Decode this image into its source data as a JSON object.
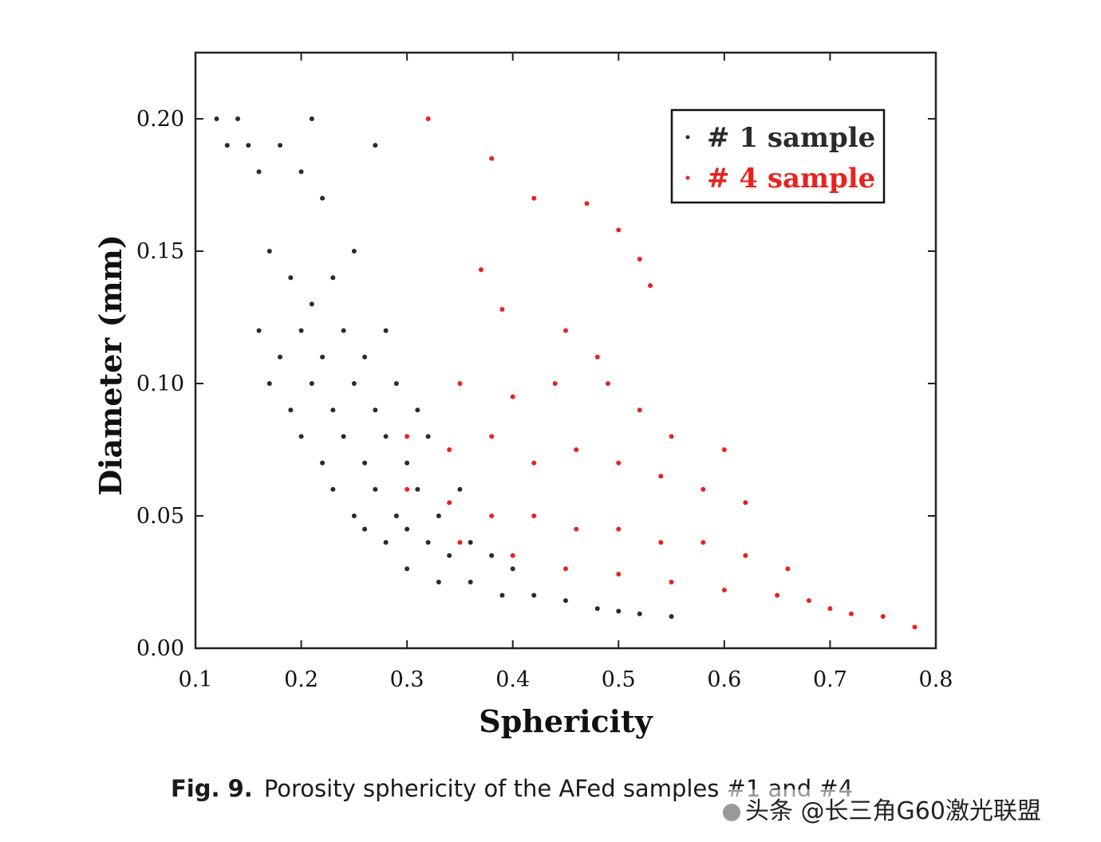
{
  "chart_data": {
    "type": "scatter",
    "xlabel": "Sphericity",
    "ylabel": "Diameter (mm)",
    "xlim": [
      0.1,
      0.8
    ],
    "ylim": [
      0.0,
      0.225
    ],
    "xticks": [
      "0.1",
      "0.2",
      "0.3",
      "0.4",
      "0.5",
      "0.6",
      "0.7",
      "0.8"
    ],
    "yticks": [
      "0.00",
      "0.05",
      "0.10",
      "0.15",
      "0.20"
    ],
    "legend_position": "top-right",
    "series": [
      {
        "name": "# 1 sample",
        "color": "#2b2b2b",
        "points": [
          [
            0.12,
            0.2
          ],
          [
            0.13,
            0.19
          ],
          [
            0.14,
            0.2
          ],
          [
            0.15,
            0.19
          ],
          [
            0.16,
            0.18
          ],
          [
            0.18,
            0.19
          ],
          [
            0.2,
            0.18
          ],
          [
            0.21,
            0.2
          ],
          [
            0.22,
            0.17
          ],
          [
            0.27,
            0.19
          ],
          [
            0.17,
            0.15
          ],
          [
            0.19,
            0.14
          ],
          [
            0.21,
            0.13
          ],
          [
            0.23,
            0.14
          ],
          [
            0.25,
            0.15
          ],
          [
            0.16,
            0.12
          ],
          [
            0.18,
            0.11
          ],
          [
            0.2,
            0.12
          ],
          [
            0.22,
            0.11
          ],
          [
            0.24,
            0.12
          ],
          [
            0.26,
            0.11
          ],
          [
            0.28,
            0.12
          ],
          [
            0.17,
            0.1
          ],
          [
            0.19,
            0.09
          ],
          [
            0.21,
            0.1
          ],
          [
            0.23,
            0.09
          ],
          [
            0.25,
            0.1
          ],
          [
            0.27,
            0.09
          ],
          [
            0.29,
            0.1
          ],
          [
            0.31,
            0.09
          ],
          [
            0.2,
            0.08
          ],
          [
            0.22,
            0.07
          ],
          [
            0.24,
            0.08
          ],
          [
            0.26,
            0.07
          ],
          [
            0.28,
            0.08
          ],
          [
            0.3,
            0.07
          ],
          [
            0.32,
            0.08
          ],
          [
            0.23,
            0.06
          ],
          [
            0.25,
            0.05
          ],
          [
            0.27,
            0.06
          ],
          [
            0.29,
            0.05
          ],
          [
            0.31,
            0.06
          ],
          [
            0.33,
            0.05
          ],
          [
            0.35,
            0.06
          ],
          [
            0.26,
            0.045
          ],
          [
            0.28,
            0.04
          ],
          [
            0.3,
            0.045
          ],
          [
            0.32,
            0.04
          ],
          [
            0.34,
            0.035
          ],
          [
            0.36,
            0.04
          ],
          [
            0.38,
            0.035
          ],
          [
            0.4,
            0.03
          ],
          [
            0.3,
            0.03
          ],
          [
            0.33,
            0.025
          ],
          [
            0.36,
            0.025
          ],
          [
            0.39,
            0.02
          ],
          [
            0.42,
            0.02
          ],
          [
            0.45,
            0.018
          ],
          [
            0.48,
            0.015
          ],
          [
            0.5,
            0.014
          ],
          [
            0.52,
            0.013
          ],
          [
            0.55,
            0.012
          ]
        ]
      },
      {
        "name": "# 4 sample",
        "color": "#e8231f",
        "points": [
          [
            0.32,
            0.2
          ],
          [
            0.38,
            0.185
          ],
          [
            0.42,
            0.17
          ],
          [
            0.47,
            0.168
          ],
          [
            0.5,
            0.158
          ],
          [
            0.52,
            0.147
          ],
          [
            0.53,
            0.137
          ],
          [
            0.37,
            0.143
          ],
          [
            0.39,
            0.128
          ],
          [
            0.45,
            0.12
          ],
          [
            0.48,
            0.11
          ],
          [
            0.35,
            0.1
          ],
          [
            0.4,
            0.095
          ],
          [
            0.44,
            0.1
          ],
          [
            0.49,
            0.1
          ],
          [
            0.52,
            0.09
          ],
          [
            0.55,
            0.08
          ],
          [
            0.6,
            0.075
          ],
          [
            0.3,
            0.08
          ],
          [
            0.34,
            0.075
          ],
          [
            0.38,
            0.08
          ],
          [
            0.42,
            0.07
          ],
          [
            0.46,
            0.075
          ],
          [
            0.5,
            0.07
          ],
          [
            0.54,
            0.065
          ],
          [
            0.58,
            0.06
          ],
          [
            0.62,
            0.055
          ],
          [
            0.3,
            0.06
          ],
          [
            0.34,
            0.055
          ],
          [
            0.38,
            0.05
          ],
          [
            0.42,
            0.05
          ],
          [
            0.46,
            0.045
          ],
          [
            0.5,
            0.045
          ],
          [
            0.54,
            0.04
          ],
          [
            0.58,
            0.04
          ],
          [
            0.62,
            0.035
          ],
          [
            0.66,
            0.03
          ],
          [
            0.35,
            0.04
          ],
          [
            0.4,
            0.035
          ],
          [
            0.45,
            0.03
          ],
          [
            0.5,
            0.028
          ],
          [
            0.55,
            0.025
          ],
          [
            0.6,
            0.022
          ],
          [
            0.65,
            0.02
          ],
          [
            0.68,
            0.018
          ],
          [
            0.7,
            0.015
          ],
          [
            0.72,
            0.013
          ],
          [
            0.75,
            0.012
          ],
          [
            0.78,
            0.008
          ]
        ]
      }
    ]
  },
  "caption": {
    "label": "Fig. 9.",
    "text": "Porosity sphericity of the AFed samples #1 and #4"
  },
  "watermark": {
    "text": "头条 @长三角G60激光联盟"
  }
}
